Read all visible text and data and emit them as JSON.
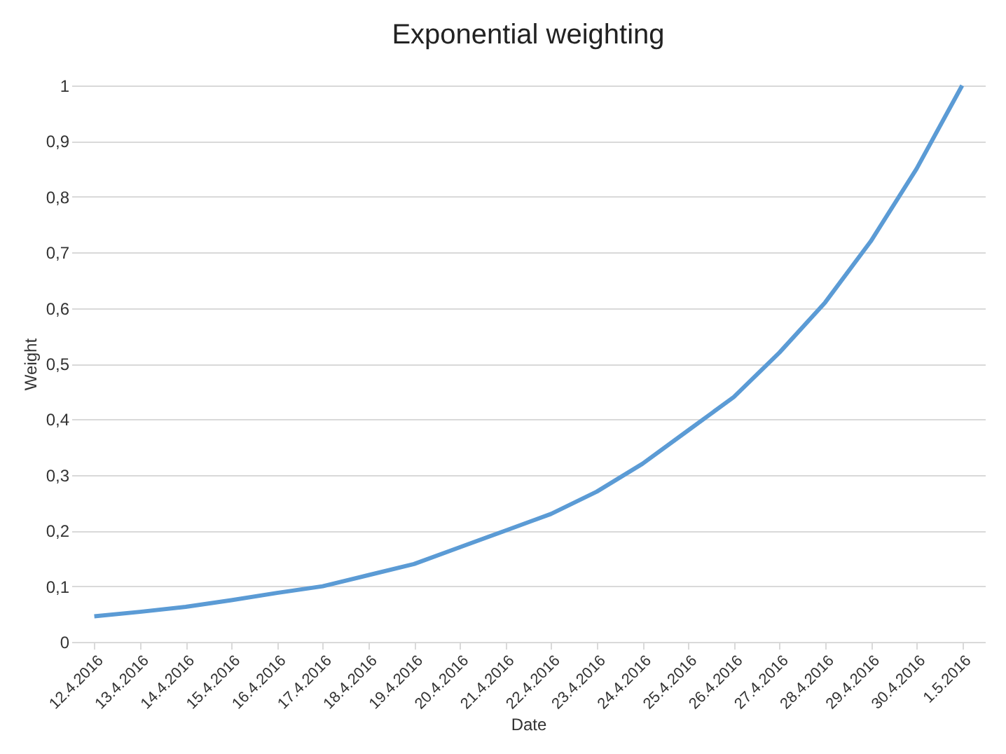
{
  "chart_data": {
    "type": "line",
    "title": "Exponential weighting",
    "xlabel": "Date",
    "ylabel": "Weight",
    "categories": [
      "12.4.2016",
      "13.4.2016",
      "14.4.2016",
      "15.4.2016",
      "16.4.2016",
      "17.4.2016",
      "18.4.2016",
      "19.4.2016",
      "20.4.2016",
      "21.4.2016",
      "22.4.2016",
      "23.4.2016",
      "24.4.2016",
      "25.4.2016",
      "26.4.2016",
      "27.4.2016",
      "28.4.2016",
      "29.4.2016",
      "30.4.2016",
      "1.5.2016"
    ],
    "series": [
      {
        "color": "#5b9bd5",
        "values": [
          0.046,
          0.054,
          0.063,
          0.075,
          0.088,
          0.1,
          0.12,
          0.14,
          0.17,
          0.2,
          0.23,
          0.27,
          0.32,
          0.38,
          0.44,
          0.52,
          0.61,
          0.72,
          0.85,
          1.0
        ]
      }
    ],
    "ylim": [
      0,
      1
    ],
    "yticks": [
      0,
      {
        "value": 0.1,
        "label": "0,1"
      },
      {
        "value": 0.2,
        "label": "0,2"
      },
      {
        "value": 0.3,
        "label": "0,3"
      },
      {
        "value": 0.4,
        "label": "0,4"
      },
      {
        "value": 0.5,
        "label": "0,5"
      },
      {
        "value": 0.6,
        "label": "0,6"
      },
      {
        "value": 0.7,
        "label": "0,7"
      },
      {
        "value": 0.8,
        "label": "0,8"
      },
      {
        "value": 0.9,
        "label": "0,9"
      },
      1
    ],
    "grid": "y",
    "marker": "none",
    "line_style": "solid"
  }
}
